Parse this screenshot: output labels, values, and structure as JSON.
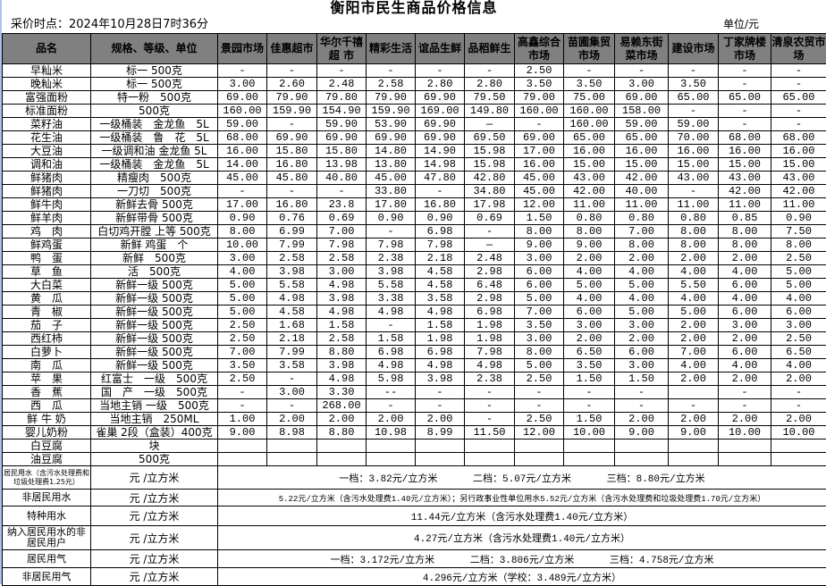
{
  "title": "衡阳市民生商品价格信息",
  "time_label": "采价时点：2024年10月28日7时36分",
  "unit_label": "单位/元",
  "header": {
    "name": "品名",
    "spec": "规格、等级、单位",
    "markets": [
      "景园市场",
      "佳惠超市",
      "华尔千禧超 市",
      "精彩生活",
      "谊品生鲜",
      "品稻鲜生",
      "高鑫综合市场",
      "苗圃集贸市场",
      "易赖东街菜市场",
      "建设市场",
      "丁家牌楼市场",
      "清泉农贸市场"
    ]
  },
  "rows": [
    {
      "name": "早籼米",
      "spec": "标一 500克",
      "prices": [
        "-",
        "-",
        "-",
        "-",
        "-",
        "-",
        "2.50",
        "-",
        "-",
        "-",
        "-",
        "-"
      ]
    },
    {
      "name": "晚籼米",
      "spec": "标一 500克",
      "prices": [
        "3.00",
        "2.60",
        "2.48",
        "2.58",
        "2.80",
        "2.80",
        "3.50",
        "3.50",
        "3.00",
        "3.50",
        "-",
        "-"
      ]
    },
    {
      "name": "富强面粉",
      "spec": "特一粉　500克",
      "prices": [
        "69.00",
        "79.90",
        "79.80",
        "79.90",
        "69.90",
        "79.50",
        "79.00",
        "75.00",
        "69.00",
        "65.00",
        "65.00",
        "65.00"
      ]
    },
    {
      "name": "标准面粉",
      "spec": "500克",
      "prices": [
        "160.00",
        "159.90",
        "154.90",
        "159.90",
        "169.00",
        "149.80",
        "160.00",
        "160.00",
        "158.00",
        "-",
        "-",
        "-"
      ]
    },
    {
      "name": "菜籽油",
      "spec": "一级桶装　金龙鱼　5L",
      "prices": [
        "59.00",
        "-",
        "59.90",
        "53.90",
        "69.90",
        "—",
        "-",
        "160.00",
        "59.00",
        "59.00",
        "-",
        "-"
      ]
    },
    {
      "name": "花生油",
      "spec": "一级桶装　鲁　花　5L",
      "prices": [
        "68.00",
        "69.90",
        "69.90",
        "69.90",
        "69.90",
        "69.50",
        "69.00",
        "65.00",
        "65.00",
        "70.00",
        "68.00",
        "68.00"
      ]
    },
    {
      "name": "大豆油",
      "spec": "一级调和油 金龙鱼 5L",
      "prices": [
        "16.00",
        "15.80",
        "15.80",
        "14.80",
        "14.90",
        "15.98",
        "17.00",
        "16.00",
        "16.00",
        "16.00",
        "16.00",
        "16.00"
      ]
    },
    {
      "name": "调和油",
      "spec": "一级桶装　金龙鱼　5L",
      "prices": [
        "14.00",
        "16.80",
        "13.98",
        "13.80",
        "14.98",
        "15.98",
        "16.00",
        "15.00",
        "15.00",
        "15.00",
        "15.00",
        "15.00"
      ]
    },
    {
      "name": "鲜猪肉",
      "spec": "精瘦肉　500克",
      "prices": [
        "45.00",
        "45.80",
        "40.80",
        "45.00",
        "47.80",
        "42.80",
        "45.00",
        "43.00",
        "42.00",
        "43.00",
        "43.00",
        "43.00"
      ]
    },
    {
      "name": "鲜猪肉",
      "spec": "一刀切　500克",
      "prices": [
        "-",
        "-",
        "-",
        "33.80",
        "-",
        "34.80",
        "45.00",
        "42.00",
        "40.00",
        "-",
        "42.00",
        "42.00"
      ]
    },
    {
      "name": "鲜牛肉",
      "spec": "新鲜去骨 500克",
      "prices": [
        "17.00",
        "16.80",
        "23.8",
        "17.80",
        "16.80",
        "17.98",
        "12.00",
        "11.00",
        "11.00",
        "11.00",
        "11.00",
        "11.00"
      ]
    },
    {
      "name": "鲜羊肉",
      "spec": "新鲜带骨 500克",
      "prices": [
        "0.90",
        "0.76",
        "0.69",
        "0.90",
        "0.90",
        "0.69",
        "1.50",
        "0.80",
        "0.80",
        "0.80",
        "0.85",
        "0.90"
      ]
    },
    {
      "name": "鸡　肉",
      "spec": "白切鸡开膛 上等 500克",
      "prices": [
        "8.00",
        "6.99",
        "7.00",
        "-",
        "6.98",
        "-",
        "8.00",
        "8.00",
        "7.00",
        "8.00",
        "8.00",
        "7.50"
      ]
    },
    {
      "name": "鲜鸡蛋",
      "spec": "新鲜 鸡蛋　个",
      "prices": [
        "10.00",
        "7.99",
        "7.98",
        "7.98",
        "7.98",
        "—",
        "9.00",
        "9.00",
        "8.00",
        "8.00",
        "8.00",
        "8.00"
      ]
    },
    {
      "name": "鸭　蛋",
      "spec": "新鲜　500克",
      "prices": [
        "3.00",
        "2.58",
        "2.58",
        "2.38",
        "2.18",
        "2.48",
        "3.00",
        "2.00",
        "2.00",
        "2.00",
        "2.00",
        "2.50"
      ]
    },
    {
      "name": "草　鱼",
      "spec": "活　500克",
      "prices": [
        "4.00",
        "3.98",
        "3.00",
        "3.98",
        "4.58",
        "2.98",
        "6.00",
        "4.00",
        "4.00",
        "4.00",
        "4.00",
        "5.00"
      ]
    },
    {
      "name": "大白菜",
      "spec": "新鲜一级 500克",
      "prices": [
        "5.00",
        "5.58",
        "4.98",
        "5.58",
        "4.58",
        "6.48",
        "6.00",
        "5.00",
        "5.00",
        "5.50",
        "6.00",
        "5.00"
      ]
    },
    {
      "name": "黄　瓜",
      "spec": "新鲜一级 500克",
      "prices": [
        "5.00",
        "4.98",
        "3.98",
        "3.38",
        "3.58",
        "2.98",
        "5.00",
        "4.00",
        "4.00",
        "4.00",
        "4.00",
        "4.00"
      ]
    },
    {
      "name": "青　椒",
      "spec": "新鲜一级 500克",
      "prices": [
        "5.00",
        "4.58",
        "4.98",
        "4.98",
        "4.98",
        "6.98",
        "7.00",
        "6.00",
        "5.00",
        "5.00",
        "6.00",
        "6.00"
      ]
    },
    {
      "name": "茄　子",
      "spec": "新鲜一级 500克",
      "prices": [
        "2.50",
        "1.68",
        "1.58",
        "-",
        "1.58",
        "1.98",
        "3.50",
        "3.00",
        "3.00",
        "2.00",
        "3.00",
        "3.00"
      ]
    },
    {
      "name": "西红柿",
      "spec": "新鲜一级 500克",
      "prices": [
        "2.50",
        "2.18",
        "2.58",
        "1.58",
        "1.98",
        "1.98",
        "3.00",
        "2.00",
        "2.00",
        "2.00",
        "2.00",
        "2.50"
      ]
    },
    {
      "name": "白萝卜",
      "spec": "新鲜一级 500克",
      "prices": [
        "7.00",
        "7.99",
        "8.80",
        "6.98",
        "6.98",
        "7.98",
        "8.00",
        "6.50",
        "6.00",
        "7.00",
        "6.00",
        "6.50"
      ]
    },
    {
      "name": "南　瓜",
      "spec": "新鲜一级 500克",
      "prices": [
        "3.50",
        "3.58",
        "3.98",
        "4.98",
        "4.98",
        "4.98",
        "5.00",
        "3.50",
        "3.00",
        "4.00",
        "4.00",
        "4.00"
      ]
    },
    {
      "name": "苹　果",
      "spec": "红富士　一级　500克",
      "prices": [
        "2.50",
        "-",
        "4.98",
        "5.98",
        "3.98",
        "2.38",
        "2.50",
        "1.50",
        "1.50",
        "2.00",
        "2.00",
        "2.00"
      ]
    },
    {
      "name": "香　蕉",
      "spec": "国　产　一级　500克",
      "prices": [
        "-",
        "3.00",
        "3.30",
        "--",
        "-",
        "-",
        "-",
        "-",
        "-",
        "",
        "-",
        "-"
      ]
    },
    {
      "name": "西　瓜",
      "spec": "当地主销 一级　500克",
      "prices": [
        "-",
        "-",
        "268.00",
        "-",
        "-",
        "-",
        "-",
        "-",
        "-",
        "-",
        "-",
        "-"
      ]
    },
    {
      "name": "鲜 牛 奶",
      "spec": "当地主销　250ML",
      "prices": [
        "1.00",
        "2.00",
        "2.00",
        "2.00",
        "2.00",
        "-",
        "2.50",
        "1.50",
        "2.00",
        "2.00",
        "2.00",
        "2.00"
      ]
    },
    {
      "name": "婴儿奶粉",
      "spec": "雀巢 2段（盒装）400克",
      "prices": [
        "9.00",
        "8.98",
        "8.80",
        "10.98",
        "8.99",
        "11.50",
        "12.00",
        "10.00",
        "9.00",
        "9.00",
        "10.00",
        "10.00"
      ]
    },
    {
      "name": "白豆腐",
      "spec": "块",
      "prices": [
        "",
        "",
        "",
        "",
        "",
        "",
        "",
        "",
        "",
        "",
        "",
        ""
      ]
    },
    {
      "name": "油豆腐",
      "spec": "500克",
      "prices": [
        "",
        "",
        "",
        "",
        "",
        "",
        "",
        "",
        "",
        "",
        "",
        ""
      ]
    }
  ],
  "utilities": [
    {
      "name": "居民用水（含污水处理费和垃圾处理费1.25元）",
      "unit": "元 /立方米",
      "value": "一档：3.82元/立方米      二档：5.07元/立方米      三档：8.80元/立方米",
      "small": true
    },
    {
      "name": "非居民用水",
      "unit": "元 /立方米",
      "value": "5.22元/立方米（含污水处理费1.40元/立方米）；另行政事业性单位用水5.52元/立方米（含污水处理费和垃圾处理费1.70元/立方米）",
      "tiny": true
    },
    {
      "name": "特种用水",
      "unit": "元 /立方米",
      "value": "11.44元/立方米（含污水处理费1.40元/立方米）"
    },
    {
      "name": "纳入居民用水的非居民用户",
      "unit": "元 /立方米",
      "value": "4.27元/立方米（含污水处理费1.40元/立方米）"
    },
    {
      "name": "居民用气",
      "unit": "元 /立方米",
      "value": "一档：3.172元/立方米      二档：3.806元/立方米      三档：4.758元/立方米"
    },
    {
      "name": "非居民用气",
      "unit": "元 /立方米",
      "value": "4.296元/立方米（学校：3.489元/立方米）"
    }
  ],
  "colors": {
    "header_bg": "#808080",
    "border": "#000000"
  }
}
